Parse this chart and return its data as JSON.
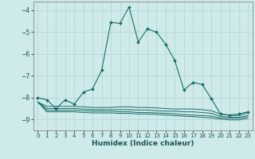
{
  "xlabel": "Humidex (Indice chaleur)",
  "background_color": "#ceeaea",
  "grid_color": "#b8d8d8",
  "line_color": "#1a6e6a",
  "xlim": [
    -0.5,
    23.5
  ],
  "ylim": [
    -9.5,
    -3.6
  ],
  "yticks": [
    -9,
    -8,
    -7,
    -6,
    -5,
    -4
  ],
  "xticks": [
    0,
    1,
    2,
    3,
    4,
    5,
    6,
    7,
    8,
    9,
    10,
    11,
    12,
    13,
    14,
    15,
    16,
    17,
    18,
    19,
    20,
    21,
    22,
    23
  ],
  "main_x": [
    0,
    1,
    2,
    3,
    4,
    5,
    6,
    7,
    8,
    9,
    10,
    11,
    12,
    13,
    14,
    15,
    16,
    17,
    18,
    19,
    20,
    21,
    22,
    23
  ],
  "main_y": [
    -8.0,
    -8.1,
    -8.5,
    -8.1,
    -8.3,
    -7.75,
    -7.6,
    -6.75,
    -4.55,
    -4.6,
    -3.85,
    -5.45,
    -4.85,
    -5.0,
    -5.55,
    -6.3,
    -7.65,
    -7.3,
    -7.4,
    -8.05,
    -8.75,
    -8.8,
    -8.75,
    -8.65
  ],
  "flat_series": [
    [
      -8.2,
      -8.4,
      -8.4,
      -8.4,
      -8.4,
      -8.42,
      -8.45,
      -8.45,
      -8.45,
      -8.42,
      -8.42,
      -8.45,
      -8.45,
      -8.47,
      -8.5,
      -8.52,
      -8.52,
      -8.52,
      -8.55,
      -8.6,
      -8.75,
      -8.82,
      -8.82,
      -8.7
    ],
    [
      -8.2,
      -8.5,
      -8.5,
      -8.5,
      -8.5,
      -8.52,
      -8.55,
      -8.55,
      -8.55,
      -8.55,
      -8.55,
      -8.57,
      -8.57,
      -8.6,
      -8.62,
      -8.62,
      -8.65,
      -8.65,
      -8.68,
      -8.72,
      -8.85,
      -8.9,
      -8.9,
      -8.82
    ],
    [
      -8.2,
      -8.58,
      -8.58,
      -8.58,
      -8.58,
      -8.6,
      -8.62,
      -8.62,
      -8.62,
      -8.65,
      -8.65,
      -8.68,
      -8.68,
      -8.7,
      -8.72,
      -8.74,
      -8.78,
      -8.8,
      -8.82,
      -8.85,
      -8.92,
      -8.95,
      -8.95,
      -8.88
    ],
    [
      -8.2,
      -8.65,
      -8.65,
      -8.65,
      -8.65,
      -8.68,
      -8.7,
      -8.7,
      -8.7,
      -8.72,
      -8.72,
      -8.75,
      -8.75,
      -8.77,
      -8.8,
      -8.82,
      -8.85,
      -8.87,
      -8.9,
      -8.93,
      -8.98,
      -9.02,
      -9.02,
      -8.95
    ]
  ]
}
